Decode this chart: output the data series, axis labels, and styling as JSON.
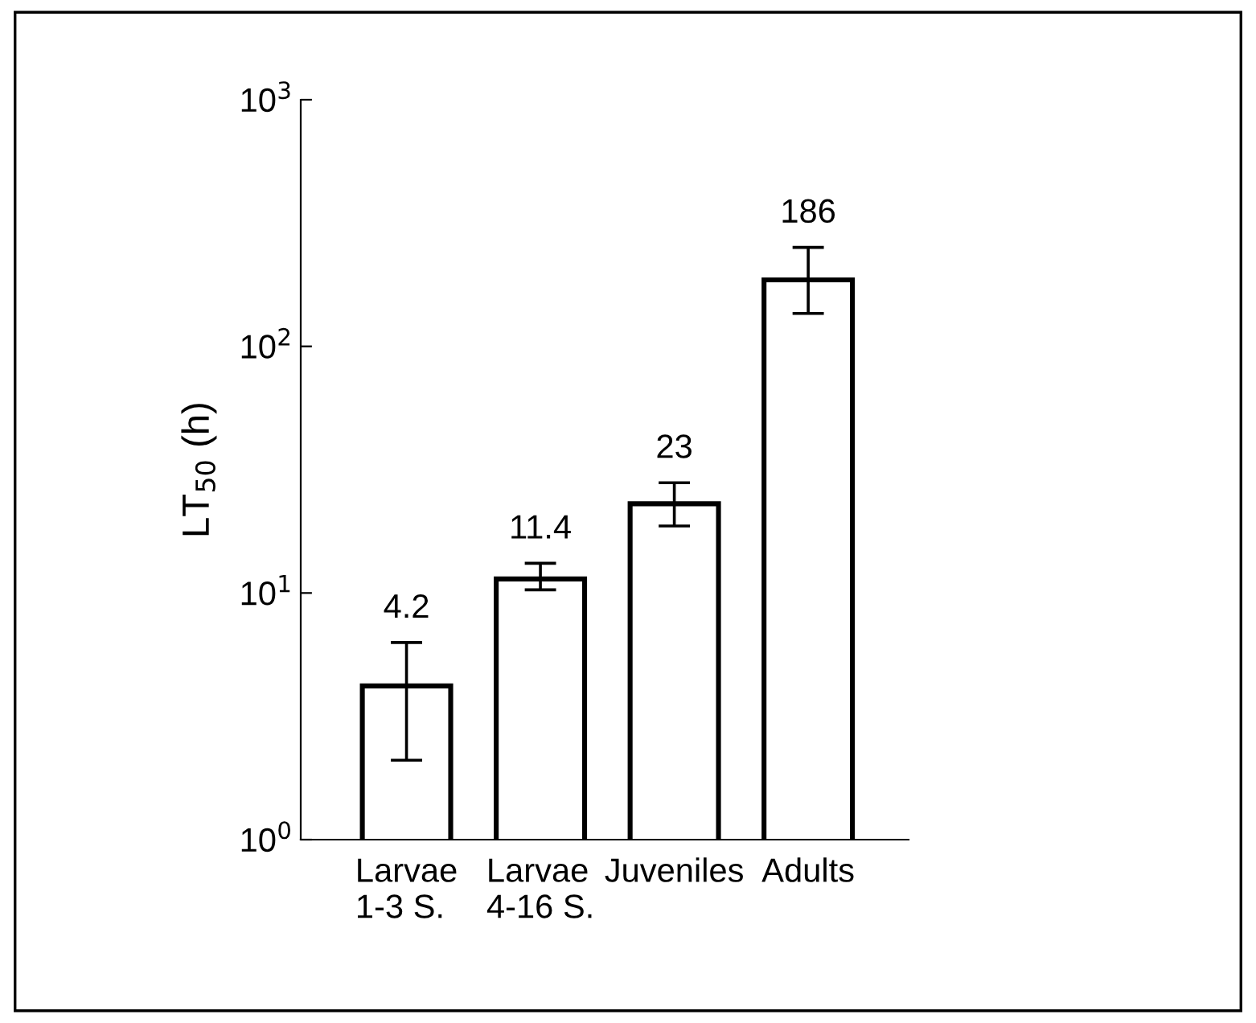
{
  "chart_data": {
    "type": "bar",
    "ylabel": "LT$_{50}$ (h)",
    "categories": [
      "Larvae\n1-3 S.",
      "Larvae\n4-16 S.",
      "Juveniles",
      "Adults"
    ],
    "values": [
      4.2,
      11.4,
      23,
      186
    ],
    "errors": [
      [
        2.1,
        6.3
      ],
      [
        10.3,
        13.2
      ],
      [
        18.7,
        28
      ],
      [
        136,
        252
      ]
    ],
    "color": "#ffffff",
    "log": true,
    "ylim": [
      1,
      1000
    ],
    "yticks": [
      {
        "value": 1,
        "label": "10$^{0}$"
      },
      {
        "value": 10,
        "label": "10$^{1}$"
      },
      {
        "value": 100,
        "label": "10$^{2}$"
      },
      {
        "value": 1000,
        "label": "10$^{3}$"
      }
    ],
    "data_labels": true
  }
}
